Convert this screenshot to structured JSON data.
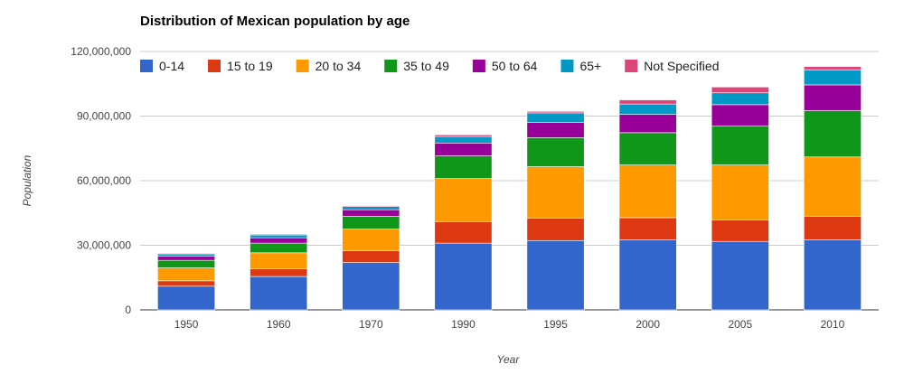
{
  "chart_data": {
    "type": "bar",
    "stacked": true,
    "title": "Distribution of Mexican population by age",
    "xlabel": "Year",
    "ylabel": "Population",
    "ylim": [
      0,
      120000000
    ],
    "yticks": [
      "0",
      "30,000,000",
      "60,000,000",
      "90,000,000",
      "120,000,000"
    ],
    "ytick_values": [
      0,
      30000000,
      60000000,
      90000000,
      120000000
    ],
    "grid": true,
    "legend_position": "top",
    "categories": [
      "1950",
      "1960",
      "1970",
      "1990",
      "1995",
      "2000",
      "2005",
      "2010"
    ],
    "series": [
      {
        "name": "0-14",
        "color": "#3366cc",
        "values": [
          11000000,
          15500000,
          22000000,
          31000000,
          32200000,
          32600000,
          31800000,
          32500000
        ]
      },
      {
        "name": "15 to 19",
        "color": "#dc3912",
        "values": [
          2500000,
          3500000,
          5500000,
          10000000,
          10300000,
          10200000,
          10000000,
          11000000
        ]
      },
      {
        "name": "20 to 34",
        "color": "#ff9900",
        "values": [
          6000000,
          7500000,
          10000000,
          20000000,
          24000000,
          24500000,
          25500000,
          27500000
        ]
      },
      {
        "name": "35 to 49",
        "color": "#109618",
        "values": [
          3500000,
          4500000,
          6000000,
          10500000,
          13500000,
          15000000,
          18000000,
          21500000
        ]
      },
      {
        "name": "50 to 64",
        "color": "#990099",
        "values": [
          2000000,
          2500000,
          3000000,
          6000000,
          7000000,
          8500000,
          10000000,
          12000000
        ]
      },
      {
        "name": "65+",
        "color": "#0099c6",
        "values": [
          1000000,
          1300000,
          1500000,
          3000000,
          4500000,
          4800000,
          5500000,
          7000000
        ]
      },
      {
        "name": "Not Specified",
        "color": "#dd4477",
        "values": [
          300000,
          400000,
          400000,
          800000,
          700000,
          1900000,
          2700000,
          1500000
        ]
      }
    ]
  }
}
